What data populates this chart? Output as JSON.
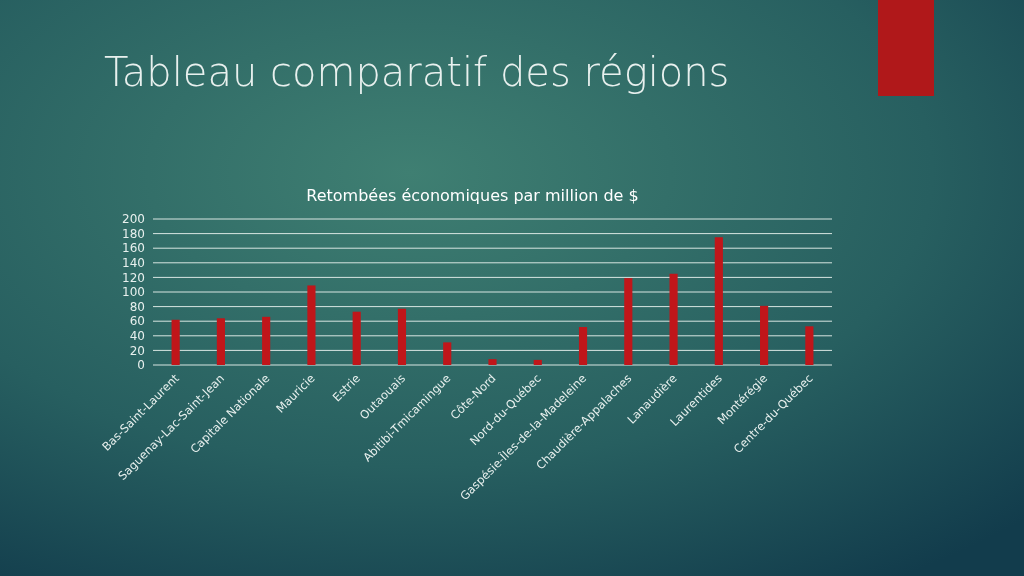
{
  "chart_data": {
    "type": "bar",
    "title": "Tableau comparatif des régions",
    "subtitle": "Retombées économiques par million de $",
    "categories": [
      "Bas-Saint-Laurent",
      "Saguenay-Lac-Saint-Jean",
      "Capitale Nationale",
      "Mauricie",
      "Estrie",
      "Outaouais",
      "Abitibi-Tmicamingue",
      "Côte-Nord",
      "Nord-du-Québec",
      "Gaspésie-Îles-de-la-Madeleine",
      "Chaudière-Appalaches",
      "Lanaudière",
      "Laurentides",
      "Montérégie",
      "Centre-du-Québec"
    ],
    "values": [
      62,
      64,
      66,
      109,
      73,
      77,
      31,
      8,
      7,
      52,
      119,
      125,
      175,
      81,
      53
    ],
    "color": "#c0161a",
    "ylim": [
      0,
      200
    ],
    "yticks": [
      0,
      20,
      40,
      60,
      80,
      100,
      120,
      140,
      160,
      180,
      200
    ],
    "grid": "y"
  }
}
